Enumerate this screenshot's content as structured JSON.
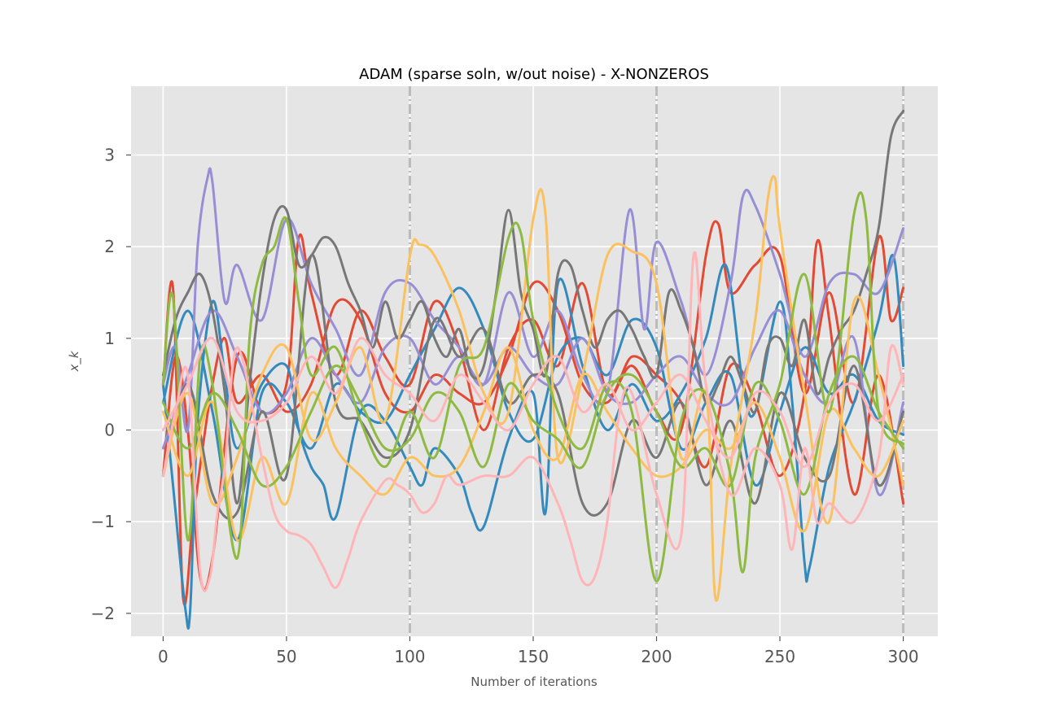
{
  "chart_data": {
    "type": "line",
    "title": "ADAM (sparse soln, w/out noise) - X-NONZEROS",
    "xlabel": "Number of iterations",
    "ylabel": "x_k",
    "xlim": [
      -13,
      314
    ],
    "ylim": [
      -2.25,
      3.75
    ],
    "xticks": [
      0,
      50,
      100,
      150,
      200,
      250,
      300
    ],
    "yticks": [
      -2,
      -1,
      0,
      1,
      2,
      3
    ],
    "xtick_labels": [
      "0",
      "50",
      "100",
      "150",
      "200",
      "250",
      "300"
    ],
    "ytick_labels": [
      "−2",
      "−1",
      "0",
      "1",
      "2",
      "3"
    ],
    "grid": true,
    "vlines": [
      100,
      200,
      300
    ],
    "colors": {
      "red": "#E24A33",
      "blue": "#348ABD",
      "purple": "#988ED5",
      "gray": "#777777",
      "yellow": "#FBC15E",
      "green": "#8EBA42",
      "pink": "#FFB5B8",
      "background": "#E5E5E5",
      "vline": "#BBBBBB"
    },
    "series": [
      {
        "color": "#E24A33",
        "x": [
          0,
          4,
          8,
          12,
          16,
          20,
          25,
          30,
          40,
          50,
          60,
          70,
          80,
          90,
          100,
          110,
          120,
          130,
          140,
          150,
          160,
          170,
          180,
          190,
          200,
          210,
          220,
          225,
          230,
          240,
          250,
          260,
          270,
          280,
          290,
          295,
          300
        ],
        "y": [
          0.5,
          1.55,
          -1.8,
          -1.0,
          -0.2,
          0.5,
          1.0,
          0.3,
          0.6,
          0.2,
          0.5,
          1.38,
          1.2,
          0.4,
          0.2,
          0.6,
          0.4,
          0.3,
          0.8,
          1.6,
          1.3,
          0.5,
          0.3,
          0.7,
          0.2,
          0.0,
          1.9,
          2.25,
          1.5,
          1.8,
          1.9,
          0.4,
          1.5,
          0.3,
          2.1,
          1.2,
          1.55
        ]
      },
      {
        "color": "#E24A33",
        "x": [
          0,
          5,
          10,
          15,
          20,
          30,
          40,
          50,
          55,
          60,
          70,
          80,
          90,
          100,
          110,
          120,
          130,
          140,
          150,
          160,
          170,
          180,
          190,
          200,
          210,
          220,
          230,
          240,
          250,
          260,
          265,
          270,
          280,
          290,
          300
        ],
        "y": [
          -0.5,
          0.8,
          0.0,
          -1.6,
          -1.4,
          0.8,
          0.2,
          0.5,
          2.1,
          1.5,
          0.6,
          1.3,
          0.8,
          0.5,
          1.4,
          0.9,
          0.0,
          0.9,
          1.2,
          0.7,
          1.6,
          0.4,
          0.8,
          0.6,
          0.3,
          -0.4,
          0.7,
          0.3,
          -0.5,
          0.4,
          2.05,
          1.2,
          -0.7,
          0.6,
          -0.8
        ]
      },
      {
        "color": "#348ABD",
        "x": [
          0,
          4,
          9,
          11,
          14,
          20,
          25,
          30,
          40,
          50,
          55,
          60,
          65,
          70,
          80,
          90,
          100,
          105,
          110,
          120,
          125,
          130,
          140,
          150,
          155,
          160,
          170,
          180,
          190,
          200,
          210,
          220,
          228,
          235,
          240,
          250,
          255,
          260,
          262,
          270,
          280,
          290,
          296,
          300
        ],
        "y": [
          0.5,
          -0.6,
          -1.95,
          -1.95,
          0.1,
          1.4,
          0.6,
          -0.2,
          0.5,
          0.7,
          0.0,
          -0.4,
          -0.6,
          -0.95,
          0.2,
          0.1,
          -0.4,
          -0.6,
          -0.2,
          -0.5,
          -0.9,
          -1.05,
          -0.1,
          0.4,
          -0.9,
          1.6,
          0.7,
          0.0,
          0.5,
          0.1,
          0.4,
          1.0,
          1.8,
          0.5,
          0.2,
          1.4,
          0.3,
          -1.45,
          -1.5,
          -0.4,
          0.3,
          1.2,
          1.9,
          0.7
        ]
      },
      {
        "color": "#348ABD",
        "x": [
          0,
          10,
          20,
          30,
          40,
          50,
          60,
          70,
          80,
          90,
          100,
          110,
          120,
          130,
          140,
          150,
          160,
          170,
          180,
          190,
          200,
          210,
          220,
          230,
          240,
          250,
          260,
          270,
          280,
          290,
          300
        ],
        "y": [
          0.3,
          1.3,
          0.2,
          -1.2,
          0.4,
          0.3,
          -0.2,
          0.5,
          0.2,
          0.1,
          0.6,
          1.1,
          1.55,
          1.1,
          0.2,
          -0.1,
          0.8,
          1.0,
          0.6,
          1.2,
          0.9,
          -0.2,
          0.3,
          0.6,
          -0.6,
          0.2,
          0.9,
          0.4,
          0.6,
          0.1,
          -0.05
        ]
      },
      {
        "color": "#988ED5",
        "x": [
          0,
          5,
          10,
          14,
          18,
          20,
          25,
          30,
          40,
          50,
          60,
          70,
          80,
          90,
          100,
          110,
          120,
          130,
          140,
          150,
          160,
          170,
          180,
          189,
          195,
          200,
          210,
          220,
          230,
          235,
          240,
          250,
          260,
          270,
          280,
          290,
          300
        ],
        "y": [
          0.5,
          0.9,
          0.0,
          2.0,
          2.75,
          2.7,
          1.4,
          1.8,
          1.2,
          2.3,
          1.6,
          1.1,
          0.6,
          1.5,
          1.6,
          1.2,
          0.9,
          0.5,
          1.5,
          0.8,
          1.3,
          0.6,
          0.4,
          2.4,
          1.1,
          2.05,
          1.4,
          0.6,
          1.6,
          2.55,
          2.45,
          1.7,
          0.8,
          1.6,
          1.7,
          1.5,
          2.2
        ]
      },
      {
        "color": "#988ED5",
        "x": [
          0,
          10,
          20,
          30,
          40,
          50,
          60,
          70,
          80,
          90,
          100,
          110,
          120,
          130,
          140,
          150,
          160,
          170,
          180,
          190,
          200,
          210,
          220,
          230,
          240,
          250,
          260,
          270,
          280,
          290,
          300
        ],
        "y": [
          -0.2,
          0.6,
          1.3,
          0.8,
          0.2,
          0.4,
          1.0,
          0.6,
          0.3,
          0.9,
          1.0,
          0.5,
          0.8,
          0.5,
          0.9,
          0.6,
          0.5,
          1.0,
          0.4,
          0.3,
          0.6,
          0.8,
          0.4,
          0.3,
          0.9,
          1.3,
          0.6,
          0.3,
          1.0,
          -0.7,
          0.3
        ]
      },
      {
        "color": "#777777",
        "x": [
          0,
          5,
          10,
          15,
          20,
          25,
          30,
          35,
          40,
          45,
          50,
          55,
          60,
          65,
          70,
          75,
          80,
          85,
          90,
          95,
          100,
          105,
          110,
          115,
          120,
          125,
          130,
          135,
          140,
          145,
          150,
          155,
          160,
          165,
          170,
          175,
          180,
          185,
          190,
          195,
          200,
          205,
          210,
          215,
          220,
          225,
          230,
          235,
          240,
          245,
          250,
          255,
          260,
          265,
          270,
          275,
          280,
          285,
          290,
          295,
          300
        ],
        "y": [
          0.6,
          1.2,
          1.5,
          1.7,
          1.3,
          0.4,
          -0.8,
          0.5,
          1.6,
          2.3,
          2.4,
          1.8,
          1.9,
          2.1,
          2.0,
          1.6,
          1.3,
          0.9,
          1.4,
          1.0,
          1.2,
          1.4,
          1.0,
          0.8,
          1.1,
          0.6,
          0.7,
          1.5,
          2.4,
          1.5,
          1.1,
          0.6,
          1.7,
          1.8,
          1.3,
          0.9,
          1.2,
          1.3,
          1.1,
          0.8,
          0.6,
          1.5,
          1.3,
          0.9,
          0.3,
          0.5,
          0.8,
          0.5,
          0.2,
          0.9,
          1.0,
          0.7,
          1.2,
          0.4,
          0.8,
          1.1,
          1.3,
          1.7,
          2.2,
          3.2,
          3.48
        ]
      },
      {
        "color": "#777777",
        "x": [
          0,
          10,
          20,
          30,
          40,
          50,
          60,
          70,
          80,
          90,
          100,
          110,
          120,
          130,
          140,
          150,
          160,
          170,
          180,
          190,
          200,
          210,
          220,
          230,
          240,
          250,
          260,
          270,
          280,
          290,
          300
        ],
        "y": [
          -0.5,
          0.5,
          -0.7,
          -0.9,
          0.2,
          -0.5,
          1.9,
          0.3,
          0.1,
          -0.3,
          0.0,
          1.2,
          0.8,
          1.1,
          0.3,
          0.6,
          0.4,
          -0.8,
          -0.8,
          0.1,
          -0.3,
          0.3,
          -0.6,
          0.1,
          -0.8,
          0.4,
          -0.3,
          -0.5,
          0.7,
          -0.6,
          0.2
        ]
      },
      {
        "color": "#FBC15E",
        "x": [
          0,
          10,
          20,
          30,
          40,
          50,
          60,
          70,
          80,
          90,
          100,
          104,
          110,
          120,
          130,
          140,
          150,
          155,
          160,
          170,
          180,
          190,
          200,
          210,
          220,
          224,
          230,
          240,
          245,
          248,
          250,
          260,
          270,
          280,
          290,
          300
        ],
        "y": [
          -0.5,
          0.4,
          -0.8,
          -0.3,
          0.6,
          0.9,
          -0.1,
          0.3,
          0.9,
          0.1,
          1.9,
          2.02,
          1.9,
          1.3,
          0.4,
          0.2,
          2.3,
          2.35,
          -0.3,
          0.6,
          1.9,
          1.95,
          1.6,
          -0.3,
          0.4,
          -1.85,
          -0.4,
          1.2,
          2.5,
          2.75,
          2.2,
          0.4,
          -1.0,
          1.4,
          0.6,
          -0.6
        ]
      },
      {
        "color": "#FBC15E",
        "x": [
          0,
          10,
          20,
          30,
          40,
          50,
          60,
          70,
          80,
          90,
          100,
          110,
          120,
          130,
          140,
          150,
          160,
          170,
          180,
          190,
          200,
          210,
          220,
          230,
          240,
          250,
          260,
          270,
          280,
          290,
          300
        ],
        "y": [
          0.2,
          -0.5,
          0.3,
          -1.2,
          -0.3,
          -0.8,
          0.4,
          -0.2,
          -0.5,
          -0.7,
          -0.3,
          -0.5,
          -0.4,
          0.2,
          0.9,
          0.0,
          -0.3,
          0.6,
          0.2,
          -0.2,
          -0.5,
          -0.4,
          0.0,
          -0.2,
          0.3,
          -0.3,
          -1.1,
          0.2,
          -0.2,
          -0.5,
          0.1
        ]
      },
      {
        "color": "#8EBA42",
        "x": [
          0,
          4,
          10,
          15,
          20,
          30,
          35,
          40,
          45,
          50,
          55,
          60,
          70,
          80,
          90,
          100,
          110,
          120,
          130,
          140,
          145,
          150,
          160,
          170,
          180,
          190,
          200,
          210,
          220,
          230,
          235,
          240,
          250,
          260,
          270,
          280,
          285,
          290,
          300
        ],
        "y": [
          0.5,
          1.45,
          -1.2,
          0.8,
          0.5,
          -1.4,
          1.0,
          1.8,
          2.0,
          2.3,
          1.4,
          0.6,
          0.9,
          0.1,
          -0.4,
          0.2,
          -0.3,
          0.7,
          0.9,
          2.1,
          2.15,
          1.2,
          0.2,
          -0.2,
          0.5,
          0.2,
          -1.65,
          0.1,
          0.4,
          -0.5,
          -1.55,
          -0.3,
          0.5,
          1.7,
          0.2,
          2.35,
          2.3,
          0.2,
          -0.15
        ]
      },
      {
        "color": "#8EBA42",
        "x": [
          0,
          10,
          20,
          30,
          40,
          50,
          60,
          70,
          80,
          90,
          100,
          110,
          120,
          130,
          140,
          150,
          160,
          170,
          180,
          190,
          200,
          210,
          220,
          230,
          240,
          250,
          260,
          270,
          280,
          290,
          300
        ],
        "y": [
          0.3,
          -0.2,
          0.4,
          0.0,
          -0.6,
          -0.4,
          0.2,
          0.7,
          0.3,
          -0.2,
          -0.1,
          0.4,
          0.2,
          -0.4,
          0.5,
          0.1,
          -0.1,
          -0.4,
          0.4,
          0.6,
          0.2,
          -0.4,
          -0.2,
          -0.6,
          0.5,
          0.1,
          -0.7,
          0.4,
          0.8,
          0.2,
          -0.2
        ]
      },
      {
        "color": "#FFB5B8",
        "x": [
          0,
          5,
          10,
          15,
          19,
          22,
          25,
          30,
          40,
          45,
          50,
          55,
          60,
          65,
          70,
          75,
          80,
          90,
          95,
          100,
          105,
          110,
          115,
          120,
          130,
          140,
          150,
          160,
          165,
          170,
          175,
          180,
          185,
          190,
          200,
          210,
          215,
          220,
          230,
          240,
          250,
          255,
          260,
          265,
          270,
          280,
          290,
          295,
          300
        ],
        "y": [
          -0.5,
          0.2,
          0.6,
          -1.55,
          -1.6,
          -0.9,
          -0.4,
          0.9,
          -0.3,
          -0.9,
          -1.1,
          -1.15,
          -1.25,
          -1.5,
          -1.72,
          -1.4,
          -1.0,
          -0.55,
          -0.6,
          -0.7,
          -0.9,
          -0.8,
          -0.5,
          -0.6,
          -0.5,
          -0.5,
          -0.3,
          -0.8,
          -1.2,
          -1.65,
          -1.6,
          -1.0,
          0.2,
          0.4,
          -0.7,
          -1.15,
          1.9,
          0.5,
          -0.7,
          -0.2,
          -0.6,
          -1.3,
          -0.2,
          -1.0,
          -0.8,
          -1.0,
          -0.3,
          0.9,
          0.5
        ]
      },
      {
        "color": "#FFB5B8",
        "x": [
          0,
          10,
          20,
          30,
          40,
          50,
          60,
          70,
          80,
          90,
          100,
          110,
          120,
          130,
          140,
          150,
          160,
          170,
          180,
          190,
          200,
          210,
          220,
          230,
          240,
          250,
          260,
          270,
          280,
          290,
          300
        ],
        "y": [
          0.0,
          0.5,
          1.0,
          0.2,
          0.1,
          0.3,
          0.8,
          0.4,
          1.0,
          0.6,
          0.4,
          0.1,
          0.6,
          0.3,
          0.0,
          0.5,
          0.8,
          0.2,
          0.5,
          0.0,
          0.3,
          0.6,
          0.1,
          -0.3,
          0.4,
          0.2,
          -0.4,
          0.3,
          0.5,
          0.1,
          0.6
        ]
      }
    ]
  }
}
